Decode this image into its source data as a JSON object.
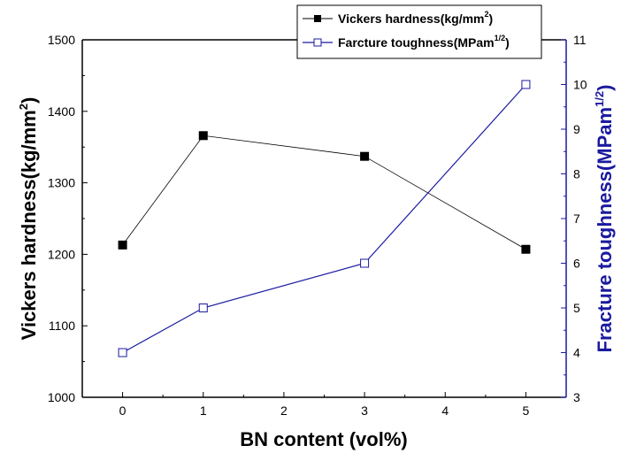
{
  "chart_data": {
    "type": "line",
    "x": [
      0,
      1,
      3,
      5
    ],
    "xlabel": "BN content (vol%)",
    "xlim": [
      -0.5,
      5.5
    ],
    "xticks": [
      "0",
      "1",
      "2",
      "3",
      "4",
      "5"
    ],
    "y_left": {
      "label": "Vickers hardness(kg/mm",
      "label_sup": "2",
      "label_end": ")",
      "ylim": [
        1000,
        1500
      ],
      "ticks": [
        "1000",
        "1100",
        "1200",
        "1300",
        "1400",
        "1500"
      ]
    },
    "y_right": {
      "label": "Fracture toughness(MPam",
      "label_sup": "1/2",
      "label_end": ")",
      "ylim": [
        3,
        11
      ],
      "ticks": [
        "3",
        "4",
        "5",
        "6",
        "7",
        "8",
        "9",
        "10",
        "11"
      ]
    },
    "series": [
      {
        "name": "Vickers hardness(kg/mm",
        "name_sup": "2",
        "name_end": ")",
        "axis": "left",
        "marker": "filled-square",
        "color": "#000000",
        "values": [
          1213,
          1366,
          1337,
          1207
        ]
      },
      {
        "name": "Farcture toughness(MPam",
        "name_sup": "1/2",
        "name_end": ")",
        "axis": "right",
        "marker": "open-square",
        "color": "#1a1aa0",
        "values": [
          4,
          5,
          6,
          10
        ]
      }
    ],
    "grid": false,
    "legend_position": "top-right"
  }
}
